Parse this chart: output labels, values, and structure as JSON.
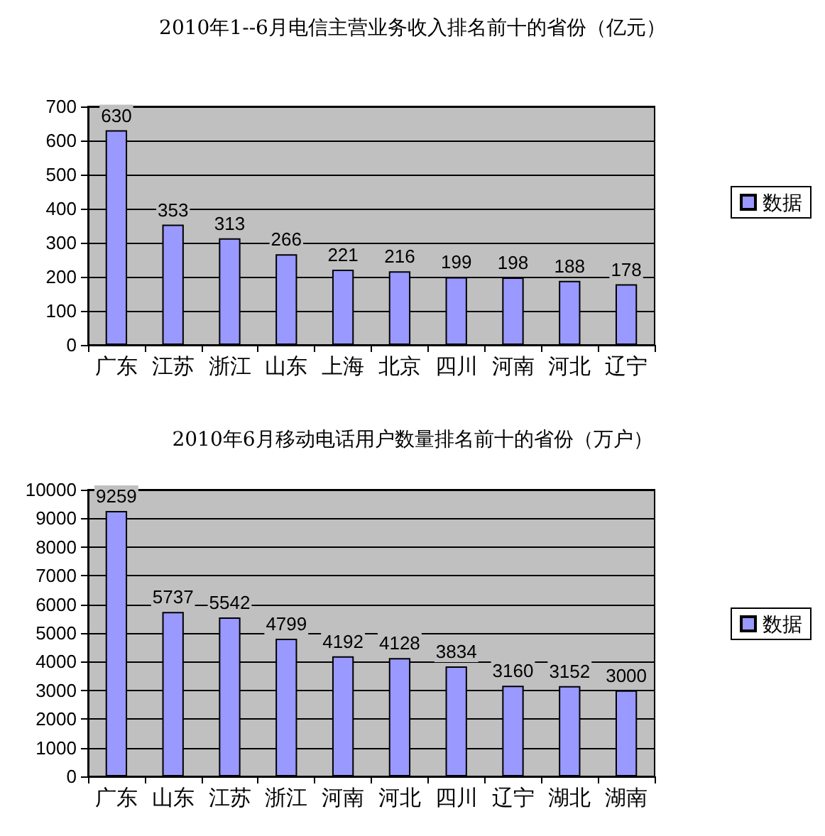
{
  "chart_data": [
    {
      "type": "bar",
      "title": "2010年1--6月电信主营业务收入排名前十的省份（亿元）",
      "categories": [
        "广东",
        "江苏",
        "浙江",
        "山东",
        "上海",
        "北京",
        "四川",
        "河南",
        "河北",
        "辽宁"
      ],
      "series": [
        {
          "name": "数据",
          "color": "#9999ff",
          "values": [
            630,
            353,
            313,
            266,
            221,
            216,
            199,
            198,
            188,
            178
          ]
        }
      ],
      "ylim": [
        0,
        700
      ],
      "yticks": [
        0,
        100,
        200,
        300,
        400,
        500,
        600,
        700
      ],
      "grid": "y",
      "legend": "right",
      "data_labels": true
    },
    {
      "type": "bar",
      "title": "2010年6月移动电话用户数量排名前十的省份（万户）",
      "categories": [
        "广东",
        "山东",
        "江苏",
        "浙江",
        "河南",
        "河北",
        "四川",
        "辽宁",
        "湖北",
        "湖南"
      ],
      "series": [
        {
          "name": "数据",
          "color": "#9999ff",
          "values": [
            9259,
            5737,
            5542,
            4799,
            4192,
            4128,
            3834,
            3160,
            3152,
            3000
          ]
        }
      ],
      "ylim": [
        0,
        10000
      ],
      "yticks": [
        0,
        1000,
        2000,
        3000,
        4000,
        5000,
        6000,
        7000,
        8000,
        9000,
        10000
      ],
      "grid": "y",
      "legend": "right",
      "data_labels": true
    }
  ]
}
